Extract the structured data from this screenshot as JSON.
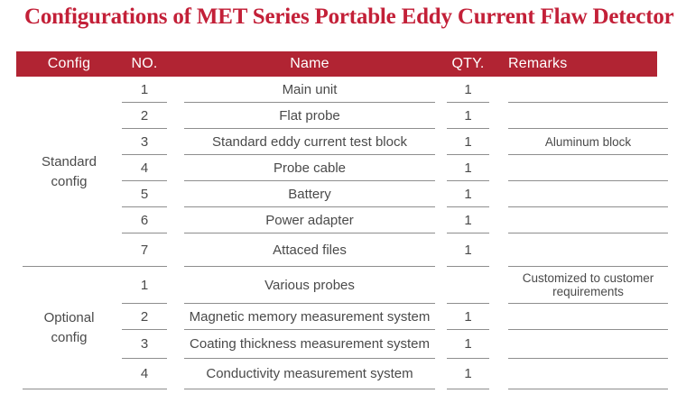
{
  "title": "Configurations of MET Series Portable Eddy Current Flaw Detector",
  "colors": {
    "title_red": "#c32038",
    "header_red": "#b12433",
    "header_text": "#ffffff",
    "body_text": "#4a4a4a",
    "line_gray": "#8e8e8e"
  },
  "table": {
    "headers": [
      "Config",
      "NO.",
      "Name",
      "QTY.",
      "Remarks"
    ],
    "sections": [
      {
        "config_label_lines": [
          "Standard",
          "config"
        ],
        "rows": [
          {
            "no": "1",
            "name": "Main unit",
            "qty": "1",
            "remarks": ""
          },
          {
            "no": "2",
            "name": "Flat probe",
            "qty": "1",
            "remarks": ""
          },
          {
            "no": "3",
            "name": "Standard eddy current test block",
            "qty": "1",
            "remarks": "Aluminum block"
          },
          {
            "no": "4",
            "name": "Probe cable",
            "qty": "1",
            "remarks": ""
          },
          {
            "no": "5",
            "name": "Battery",
            "qty": "1",
            "remarks": ""
          },
          {
            "no": "6",
            "name": "Power adapter",
            "qty": "1",
            "remarks": ""
          },
          {
            "no": "7",
            "name": "Attaced files",
            "qty": "1",
            "remarks": ""
          }
        ]
      },
      {
        "config_label_lines": [
          "Optional",
          "config"
        ],
        "rows": [
          {
            "no": "1",
            "name": "Various probes",
            "qty": "",
            "remarks": "Customized to customer requirements"
          },
          {
            "no": "2",
            "name": "Magnetic memory measurement system",
            "qty": "1",
            "remarks": ""
          },
          {
            "no": "3",
            "name": "Coating thickness measurement system",
            "qty": "1",
            "remarks": ""
          },
          {
            "no": "4",
            "name": "Conductivity measurement system",
            "qty": "1",
            "remarks": ""
          }
        ]
      }
    ]
  }
}
